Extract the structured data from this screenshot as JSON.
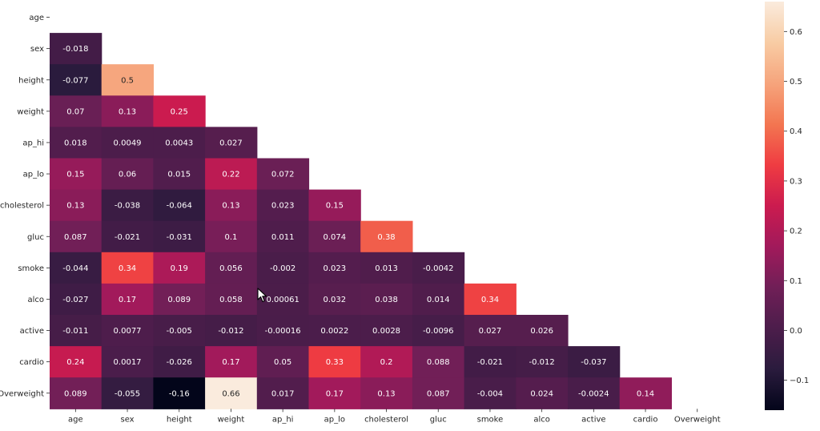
{
  "chart_data": {
    "type": "heatmap",
    "title": "",
    "xlabel": "",
    "ylabel": "",
    "mask": "upper-triangle-including-diagonal",
    "variables": [
      "age",
      "sex",
      "height",
      "weight",
      "ap_hi",
      "ap_lo",
      "cholesterol",
      "gluc",
      "smoke",
      "alco",
      "active",
      "cardio",
      "Overweight"
    ],
    "cells": [
      {
        "row": "sex",
        "col": "age",
        "value": -0.018,
        "label": "-0.018"
      },
      {
        "row": "height",
        "col": "age",
        "value": -0.077,
        "label": "-0.077"
      },
      {
        "row": "height",
        "col": "sex",
        "value": 0.5,
        "label": "0.5"
      },
      {
        "row": "weight",
        "col": "age",
        "value": 0.07,
        "label": "0.07"
      },
      {
        "row": "weight",
        "col": "sex",
        "value": 0.13,
        "label": "0.13"
      },
      {
        "row": "weight",
        "col": "height",
        "value": 0.25,
        "label": "0.25"
      },
      {
        "row": "ap_hi",
        "col": "age",
        "value": 0.018,
        "label": "0.018"
      },
      {
        "row": "ap_hi",
        "col": "sex",
        "value": 0.0049,
        "label": "0.0049"
      },
      {
        "row": "ap_hi",
        "col": "height",
        "value": 0.0043,
        "label": "0.0043"
      },
      {
        "row": "ap_hi",
        "col": "weight",
        "value": 0.027,
        "label": "0.027"
      },
      {
        "row": "ap_lo",
        "col": "age",
        "value": 0.15,
        "label": "0.15"
      },
      {
        "row": "ap_lo",
        "col": "sex",
        "value": 0.06,
        "label": "0.06"
      },
      {
        "row": "ap_lo",
        "col": "height",
        "value": 0.015,
        "label": "0.015"
      },
      {
        "row": "ap_lo",
        "col": "weight",
        "value": 0.22,
        "label": "0.22"
      },
      {
        "row": "ap_lo",
        "col": "ap_hi",
        "value": 0.072,
        "label": "0.072"
      },
      {
        "row": "cholesterol",
        "col": "age",
        "value": 0.13,
        "label": "0.13"
      },
      {
        "row": "cholesterol",
        "col": "sex",
        "value": -0.038,
        "label": "-0.038"
      },
      {
        "row": "cholesterol",
        "col": "height",
        "value": -0.064,
        "label": "-0.064"
      },
      {
        "row": "cholesterol",
        "col": "weight",
        "value": 0.13,
        "label": "0.13"
      },
      {
        "row": "cholesterol",
        "col": "ap_hi",
        "value": 0.023,
        "label": "0.023"
      },
      {
        "row": "cholesterol",
        "col": "ap_lo",
        "value": 0.15,
        "label": "0.15"
      },
      {
        "row": "gluc",
        "col": "age",
        "value": 0.087,
        "label": "0.087"
      },
      {
        "row": "gluc",
        "col": "sex",
        "value": -0.021,
        "label": "-0.021"
      },
      {
        "row": "gluc",
        "col": "height",
        "value": -0.031,
        "label": "-0.031"
      },
      {
        "row": "gluc",
        "col": "weight",
        "value": 0.1,
        "label": "0.1"
      },
      {
        "row": "gluc",
        "col": "ap_hi",
        "value": 0.011,
        "label": "0.011"
      },
      {
        "row": "gluc",
        "col": "ap_lo",
        "value": 0.074,
        "label": "0.074"
      },
      {
        "row": "gluc",
        "col": "cholesterol",
        "value": 0.38,
        "label": "0.38"
      },
      {
        "row": "smoke",
        "col": "age",
        "value": -0.044,
        "label": "-0.044"
      },
      {
        "row": "smoke",
        "col": "sex",
        "value": 0.34,
        "label": "0.34"
      },
      {
        "row": "smoke",
        "col": "height",
        "value": 0.19,
        "label": "0.19"
      },
      {
        "row": "smoke",
        "col": "weight",
        "value": 0.056,
        "label": "0.056"
      },
      {
        "row": "smoke",
        "col": "ap_hi",
        "value": -0.002,
        "label": "-0.002"
      },
      {
        "row": "smoke",
        "col": "ap_lo",
        "value": 0.023,
        "label": "0.023"
      },
      {
        "row": "smoke",
        "col": "cholesterol",
        "value": 0.013,
        "label": "0.013"
      },
      {
        "row": "smoke",
        "col": "gluc",
        "value": -0.0042,
        "label": "-0.0042"
      },
      {
        "row": "alco",
        "col": "age",
        "value": -0.027,
        "label": "-0.027"
      },
      {
        "row": "alco",
        "col": "sex",
        "value": 0.17,
        "label": "0.17"
      },
      {
        "row": "alco",
        "col": "height",
        "value": 0.089,
        "label": "0.089"
      },
      {
        "row": "alco",
        "col": "weight",
        "value": 0.058,
        "label": "0.058"
      },
      {
        "row": "alco",
        "col": "ap_hi",
        "value": 0.00061,
        "label": "0.00061"
      },
      {
        "row": "alco",
        "col": "ap_lo",
        "value": 0.032,
        "label": "0.032"
      },
      {
        "row": "alco",
        "col": "cholesterol",
        "value": 0.038,
        "label": "0.038"
      },
      {
        "row": "alco",
        "col": "gluc",
        "value": 0.014,
        "label": "0.014"
      },
      {
        "row": "alco",
        "col": "smoke",
        "value": 0.34,
        "label": "0.34"
      },
      {
        "row": "active",
        "col": "age",
        "value": -0.011,
        "label": "-0.011"
      },
      {
        "row": "active",
        "col": "sex",
        "value": 0.0077,
        "label": "0.0077"
      },
      {
        "row": "active",
        "col": "height",
        "value": -0.005,
        "label": "-0.005"
      },
      {
        "row": "active",
        "col": "weight",
        "value": -0.012,
        "label": "-0.012"
      },
      {
        "row": "active",
        "col": "ap_hi",
        "value": -0.00016,
        "label": "-0.00016"
      },
      {
        "row": "active",
        "col": "ap_lo",
        "value": 0.0022,
        "label": "0.0022"
      },
      {
        "row": "active",
        "col": "cholesterol",
        "value": 0.0028,
        "label": "0.0028"
      },
      {
        "row": "active",
        "col": "gluc",
        "value": -0.0096,
        "label": "-0.0096"
      },
      {
        "row": "active",
        "col": "smoke",
        "value": 0.027,
        "label": "0.027"
      },
      {
        "row": "active",
        "col": "alco",
        "value": 0.026,
        "label": "0.026"
      },
      {
        "row": "cardio",
        "col": "age",
        "value": 0.24,
        "label": "0.24"
      },
      {
        "row": "cardio",
        "col": "sex",
        "value": 0.0017,
        "label": "0.0017"
      },
      {
        "row": "cardio",
        "col": "height",
        "value": -0.026,
        "label": "-0.026"
      },
      {
        "row": "cardio",
        "col": "weight",
        "value": 0.17,
        "label": "0.17"
      },
      {
        "row": "cardio",
        "col": "ap_hi",
        "value": 0.05,
        "label": "0.05"
      },
      {
        "row": "cardio",
        "col": "ap_lo",
        "value": 0.33,
        "label": "0.33"
      },
      {
        "row": "cardio",
        "col": "cholesterol",
        "value": 0.2,
        "label": "0.2"
      },
      {
        "row": "cardio",
        "col": "gluc",
        "value": 0.088,
        "label": "0.088"
      },
      {
        "row": "cardio",
        "col": "smoke",
        "value": -0.021,
        "label": "-0.021"
      },
      {
        "row": "cardio",
        "col": "alco",
        "value": -0.012,
        "label": "-0.012"
      },
      {
        "row": "cardio",
        "col": "active",
        "value": -0.037,
        "label": "-0.037"
      },
      {
        "row": "Overweight",
        "col": "age",
        "value": 0.089,
        "label": "0.089"
      },
      {
        "row": "Overweight",
        "col": "sex",
        "value": -0.055,
        "label": "-0.055"
      },
      {
        "row": "Overweight",
        "col": "height",
        "value": -0.16,
        "label": "-0.16"
      },
      {
        "row": "Overweight",
        "col": "weight",
        "value": 0.66,
        "label": "0.66"
      },
      {
        "row": "Overweight",
        "col": "ap_hi",
        "value": 0.017,
        "label": "0.017"
      },
      {
        "row": "Overweight",
        "col": "ap_lo",
        "value": 0.17,
        "label": "0.17"
      },
      {
        "row": "Overweight",
        "col": "cholesterol",
        "value": 0.13,
        "label": "0.13"
      },
      {
        "row": "Overweight",
        "col": "gluc",
        "value": 0.087,
        "label": "0.087"
      },
      {
        "row": "Overweight",
        "col": "smoke",
        "value": -0.004,
        "label": "-0.004"
      },
      {
        "row": "Overweight",
        "col": "alco",
        "value": 0.024,
        "label": "0.024"
      },
      {
        "row": "Overweight",
        "col": "active",
        "value": -0.0024,
        "label": "-0.0024"
      },
      {
        "row": "Overweight",
        "col": "cardio",
        "value": 0.14,
        "label": "0.14"
      }
    ],
    "colorbar": {
      "colormap": "rocket",
      "vmin": -0.16,
      "vmax": 0.66,
      "ticks": [
        -0.1,
        0.0,
        0.1,
        0.2,
        0.3,
        0.4,
        0.5,
        0.6
      ],
      "tick_labels": [
        "−0.1",
        "0.0",
        "0.1",
        "0.2",
        "0.3",
        "0.4",
        "0.5",
        "0.6"
      ],
      "stops": [
        "#03051a",
        "#2a1b3d",
        "#4c1d4b",
        "#701f57",
        "#a11a5b",
        "#cb1b4f",
        "#ef3c42",
        "#f37651",
        "#f6a47c",
        "#f8cca4",
        "#faebdd"
      ]
    },
    "grid": false,
    "legend": "colorbar-right"
  }
}
